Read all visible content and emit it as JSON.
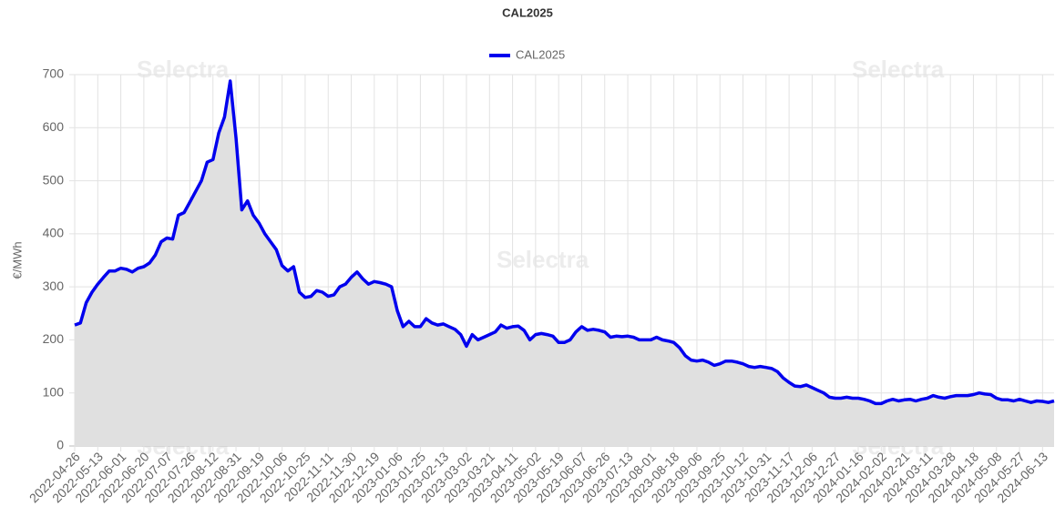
{
  "chart_data": {
    "type": "line",
    "title": "CAL2025",
    "y_label": "€/MWh",
    "watermark": "Selectra",
    "categories": [
      "2022-04-26",
      null,
      null,
      null,
      "2022-05-13",
      null,
      null,
      null,
      "2022-06-01",
      null,
      null,
      null,
      "2022-06-20",
      null,
      null,
      null,
      "2022-07-07",
      null,
      null,
      null,
      "2022-07-26",
      null,
      null,
      null,
      "2022-08-12",
      null,
      null,
      null,
      "2022-08-31",
      null,
      null,
      null,
      "2022-09-19",
      null,
      null,
      null,
      "2022-10-06",
      null,
      null,
      null,
      "2022-10-25",
      null,
      null,
      null,
      "2022-11-11",
      null,
      null,
      null,
      "2022-11-30",
      null,
      null,
      null,
      "2022-12-19",
      null,
      null,
      null,
      "2023-01-06",
      null,
      null,
      null,
      "2023-01-25",
      null,
      null,
      null,
      "2023-02-13",
      null,
      null,
      null,
      "2023-03-02",
      null,
      null,
      null,
      "2023-03-21",
      null,
      null,
      null,
      "2023-04-11",
      null,
      null,
      null,
      "2023-05-02",
      null,
      null,
      null,
      "2023-05-19",
      null,
      null,
      null,
      "2023-06-07",
      null,
      null,
      null,
      "2023-06-26",
      null,
      null,
      null,
      "2023-07-13",
      null,
      null,
      null,
      "2023-08-01",
      null,
      null,
      null,
      "2023-08-18",
      null,
      null,
      null,
      "2023-09-06",
      null,
      null,
      null,
      "2023-09-25",
      null,
      null,
      null,
      "2023-10-12",
      null,
      null,
      null,
      "2023-10-31",
      null,
      null,
      null,
      "2023-11-17",
      null,
      null,
      null,
      "2023-12-06",
      null,
      null,
      null,
      "2023-12-27",
      null,
      null,
      null,
      "2024-01-16",
      null,
      null,
      null,
      "2024-02-02",
      null,
      null,
      null,
      "2024-02-21",
      null,
      null,
      null,
      "2024-03-11",
      null,
      null,
      null,
      "2024-03-28",
      null,
      null,
      null,
      "2024-04-18",
      null,
      null,
      null,
      "2024-05-08",
      null,
      null,
      null,
      "2024-05-27",
      null,
      null,
      null,
      "2024-06-13",
      null,
      null
    ],
    "series": [
      {
        "name": "CAL2025",
        "color": "#0000ee",
        "fill": "#e0e0e0",
        "values": [
          228,
          232,
          270,
          290,
          305,
          318,
          330,
          330,
          335,
          333,
          328,
          335,
          338,
          345,
          360,
          385,
          392,
          390,
          435,
          440,
          460,
          480,
          500,
          535,
          540,
          590,
          620,
          688,
          580,
          445,
          462,
          435,
          420,
          400,
          385,
          370,
          340,
          330,
          338,
          290,
          280,
          282,
          293,
          290,
          282,
          285,
          300,
          305,
          318,
          328,
          315,
          305,
          310,
          308,
          305,
          300,
          255,
          225,
          235,
          225,
          225,
          240,
          232,
          228,
          230,
          225,
          220,
          210,
          188,
          210,
          200,
          205,
          210,
          215,
          228,
          222,
          225,
          226,
          218,
          200,
          210,
          212,
          210,
          207,
          195,
          195,
          200,
          215,
          225,
          218,
          220,
          218,
          215,
          205,
          207,
          206,
          207,
          205,
          200,
          200,
          200,
          205,
          200,
          198,
          195,
          185,
          170,
          162,
          160,
          162,
          158,
          152,
          155,
          160,
          160,
          158,
          155,
          150,
          148,
          150,
          148,
          146,
          140,
          128,
          120,
          113,
          112,
          115,
          110,
          105,
          100,
          92,
          90,
          90,
          92,
          90,
          90,
          88,
          85,
          80,
          80,
          85,
          88,
          85,
          87,
          88,
          85,
          88,
          90,
          95,
          92,
          90,
          93,
          95,
          95,
          95,
          97,
          100,
          98,
          97,
          90,
          87,
          87,
          85,
          88,
          85,
          82,
          85,
          84,
          82,
          85
        ]
      }
    ],
    "ylim": [
      0,
      700
    ],
    "yticks": [
      0,
      100,
      200,
      300,
      400,
      500,
      600,
      700
    ],
    "grid": true
  }
}
